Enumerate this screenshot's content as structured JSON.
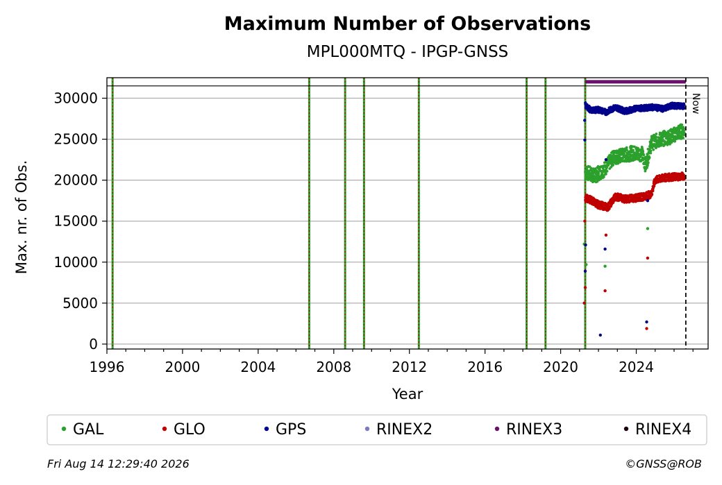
{
  "chart_data": {
    "type": "scatter",
    "title": "Maximum Number of Observations",
    "subtitle": "MPL000MTQ - IPGP-GNSS",
    "xlabel": "Year",
    "ylabel": "Max. nr. of Obs.",
    "xlim": [
      1996.0,
      2027.8
    ],
    "ylim": [
      -600,
      32500
    ],
    "x_ticks": [
      1996,
      2000,
      2004,
      2008,
      2012,
      2016,
      2020,
      2024
    ],
    "y_ticks": [
      0,
      5000,
      10000,
      15000,
      20000,
      25000,
      30000
    ],
    "grid": "horizontal",
    "legend_position": "below",
    "now_label": "Now",
    "now_x": 2026.62,
    "upper_limit_line": 31500,
    "event_lines_x": [
      1996.3,
      2006.7,
      2008.6,
      2009.6,
      2012.5,
      2018.2,
      2019.2,
      2021.3
    ],
    "event_line_color_outer": "#2ca02c",
    "event_line_color_inner": "#c00000",
    "rinex3_span": {
      "start": 2021.3,
      "end": 2026.62,
      "y": 32000,
      "color": "#6a0f6a"
    },
    "series": [
      {
        "name": "GAL",
        "color": "#2ca02c",
        "segments": [
          [
            2021.3,
            21000
          ],
          [
            2021.8,
            20500
          ],
          [
            2022.3,
            21300
          ],
          [
            2022.8,
            22800
          ],
          [
            2023.3,
            23000
          ],
          [
            2023.8,
            23300
          ],
          [
            2024.3,
            23200
          ],
          [
            2024.5,
            21800
          ],
          [
            2024.8,
            24500
          ],
          [
            2025.3,
            25000
          ],
          [
            2025.8,
            25300
          ],
          [
            2026.3,
            25900
          ],
          [
            2026.55,
            26000
          ]
        ],
        "outliers": [
          [
            2021.35,
            9700
          ],
          [
            2022.35,
            9500
          ],
          [
            2024.6,
            14100
          ],
          [
            2021.25,
            12200
          ]
        ]
      },
      {
        "name": "GLO",
        "color": "#c00000",
        "segments": [
          [
            2021.3,
            17800
          ],
          [
            2021.6,
            17600
          ],
          [
            2022.0,
            17000
          ],
          [
            2022.5,
            16700
          ],
          [
            2022.9,
            18000
          ],
          [
            2023.4,
            17700
          ],
          [
            2023.9,
            17800
          ],
          [
            2024.4,
            18000
          ],
          [
            2024.8,
            18300
          ],
          [
            2025.0,
            20000
          ],
          [
            2025.5,
            20300
          ],
          [
            2026.0,
            20400
          ],
          [
            2026.55,
            20500
          ]
        ],
        "outliers": [
          [
            2021.3,
            6900
          ],
          [
            2021.25,
            5000
          ],
          [
            2022.4,
            13300
          ],
          [
            2022.35,
            6500
          ],
          [
            2024.6,
            10500
          ],
          [
            2024.55,
            1900
          ],
          [
            2021.28,
            15000
          ]
        ]
      },
      {
        "name": "GPS",
        "color": "#00008b",
        "segments": [
          [
            2021.3,
            29200
          ],
          [
            2021.6,
            28500
          ],
          [
            2022.0,
            28600
          ],
          [
            2022.4,
            28300
          ],
          [
            2022.9,
            28900
          ],
          [
            2023.4,
            28400
          ],
          [
            2023.9,
            28700
          ],
          [
            2024.4,
            28800
          ],
          [
            2024.9,
            28900
          ],
          [
            2025.4,
            28700
          ],
          [
            2025.9,
            29100
          ],
          [
            2026.55,
            29000
          ]
        ],
        "outliers": [
          [
            2021.3,
            8900
          ],
          [
            2021.28,
            24900
          ],
          [
            2021.27,
            27300
          ],
          [
            2022.1,
            1100
          ],
          [
            2022.35,
            11600
          ],
          [
            2022.4,
            22500
          ],
          [
            2024.55,
            2700
          ],
          [
            2024.6,
            17500
          ],
          [
            2021.32,
            12100
          ]
        ]
      },
      {
        "name": "RINEX2",
        "color": "#7b7bbf",
        "segments": [],
        "outliers": []
      },
      {
        "name": "RINEX3",
        "color": "#6a0f6a",
        "segments": [],
        "outliers": []
      },
      {
        "name": "RINEX4",
        "color": "#1a0010",
        "segments": [],
        "outliers": []
      }
    ]
  },
  "footer": {
    "timestamp": "Fri Aug 14 12:29:40 2026",
    "copyright": "©GNSS@ROB"
  }
}
